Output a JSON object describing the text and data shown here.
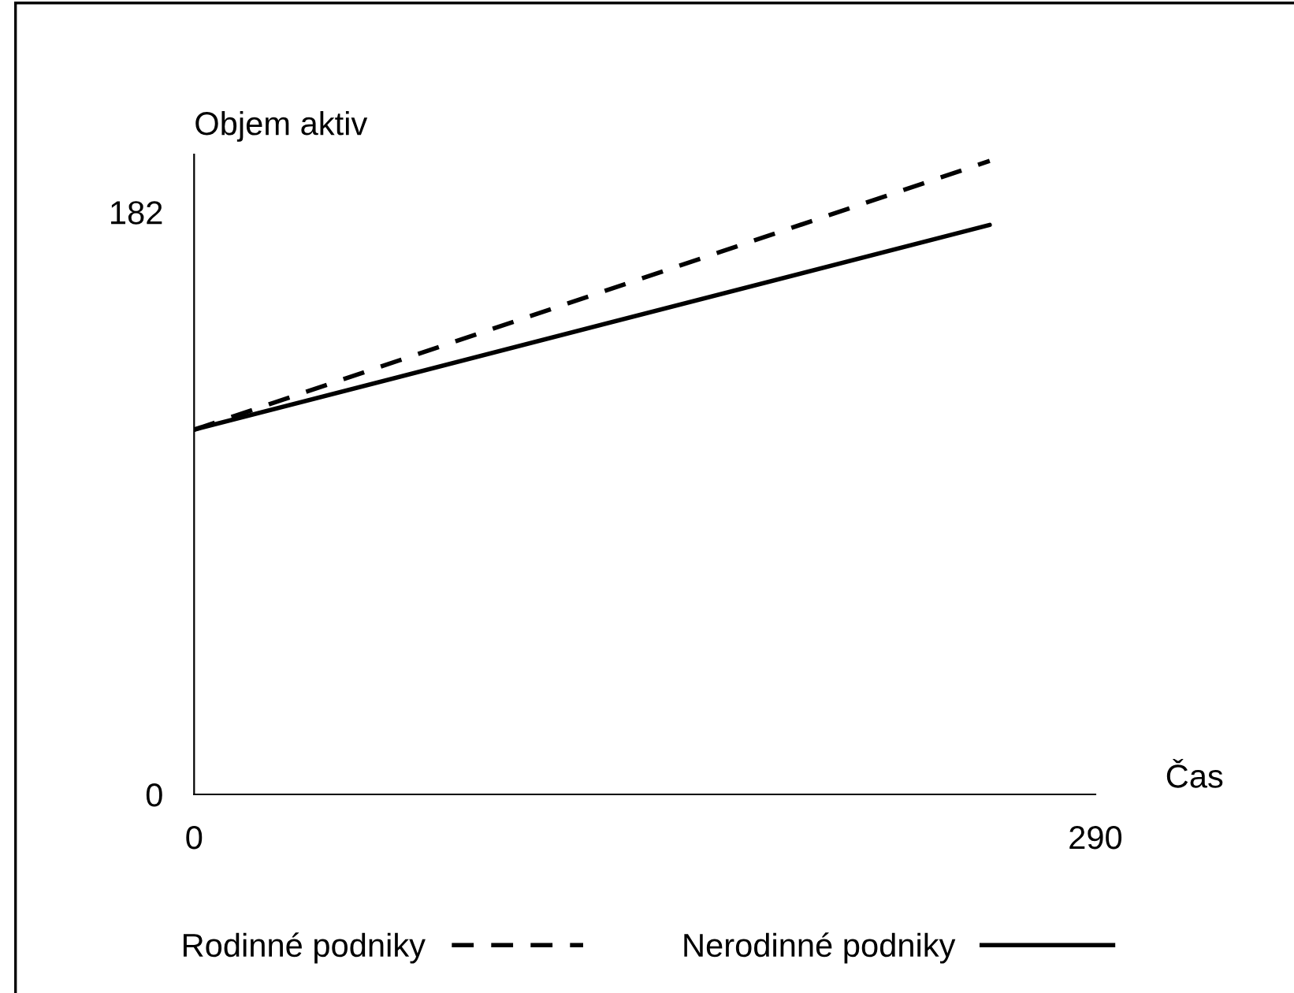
{
  "chart_data": {
    "type": "line",
    "xlabel": "Čas",
    "ylabel": "Objem aktiv",
    "x": [
      0,
      256
    ],
    "xlim": [
      0,
      290
    ],
    "xticks": [
      0,
      290
    ],
    "ylim": [
      0,
      200
    ],
    "yticks": [
      0,
      182
    ],
    "series": [
      {
        "name": "Rodinné podniky",
        "color": "#000000",
        "values": [
          114,
          198
        ],
        "line_style": "dashed"
      },
      {
        "name": "Nerodinné podniky",
        "color": "#000000",
        "values": [
          114,
          178
        ],
        "line_style": "solid"
      }
    ],
    "legend": "bottom",
    "grid": false,
    "marker": "none"
  }
}
